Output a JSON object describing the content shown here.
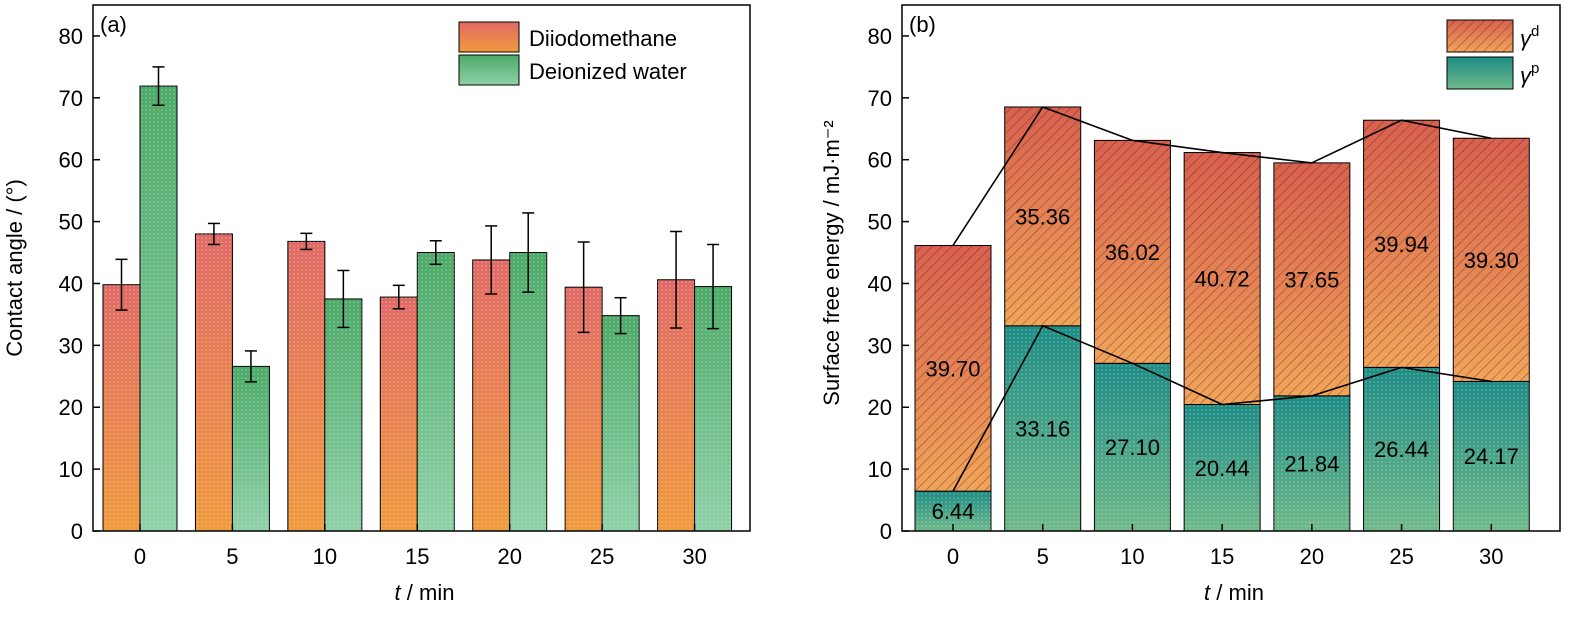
{
  "chart_data": [
    {
      "type": "bar",
      "panel_label": "(a)",
      "xlabel_italic": "t",
      "xlabel_rest": " / min",
      "ylabel": "Contact angle / (°)",
      "categories": [
        "0",
        "5",
        "10",
        "15",
        "20",
        "25",
        "30"
      ],
      "ylim": [
        0,
        85
      ],
      "yticks": [
        0,
        10,
        20,
        30,
        40,
        50,
        60,
        70,
        80
      ],
      "legend_position": "top-right",
      "grid": false,
      "series": [
        {
          "name": "Diiodomethane",
          "values": [
            39.8,
            48.0,
            46.8,
            37.8,
            43.8,
            39.4,
            40.6
          ],
          "errors": [
            4.1,
            1.7,
            1.3,
            1.9,
            5.5,
            7.3,
            7.8
          ],
          "color_top": "#e06a66",
          "color_bottom": "#f09a3e"
        },
        {
          "name": "Deionized water",
          "values": [
            71.9,
            26.6,
            37.5,
            45.0,
            45.0,
            34.8,
            39.5
          ],
          "errors": [
            3.1,
            2.5,
            4.6,
            1.9,
            6.4,
            2.9,
            6.8
          ],
          "color_top": "#4daa68",
          "color_bottom": "#8fd1a8"
        }
      ]
    },
    {
      "type": "bar",
      "stacked": true,
      "panel_label": "(b)",
      "xlabel_italic": "t",
      "xlabel_rest": " / min",
      "ylabel": "Surface free energy / mJ·m⁻²",
      "categories": [
        "0",
        "5",
        "10",
        "15",
        "20",
        "25",
        "30"
      ],
      "ylim": [
        0,
        85
      ],
      "yticks": [
        0,
        10,
        20,
        30,
        40,
        50,
        60,
        70,
        80
      ],
      "legend_position": "top-right",
      "grid": false,
      "series": [
        {
          "name": "γp",
          "name_base": "γ",
          "name_sup": "p",
          "values": [
            6.44,
            33.16,
            27.1,
            20.44,
            21.84,
            26.44,
            24.17
          ],
          "labels": [
            "6.44",
            "33.16",
            "27.10",
            "20.44",
            "21.84",
            "26.44",
            "24.17"
          ],
          "color_top": "#1e8c86",
          "color_bottom": "#6fb98a"
        },
        {
          "name": "γd",
          "name_base": "γ",
          "name_sup": "d",
          "values": [
            39.7,
            35.36,
            36.02,
            40.72,
            37.65,
            39.94,
            39.3
          ],
          "labels": [
            "39.70",
            "35.36",
            "36.02",
            "40.72",
            "37.65",
            "39.94",
            "39.30"
          ],
          "color_top": "#d9604e",
          "color_bottom": "#f2a45a"
        }
      ],
      "connector_lines": true
    }
  ]
}
